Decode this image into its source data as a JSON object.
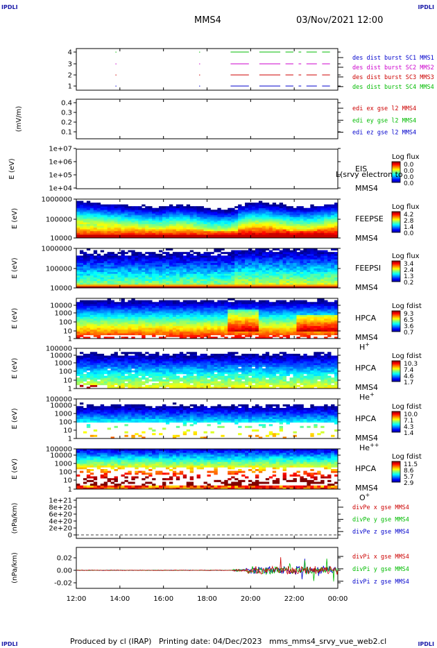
{
  "header": {
    "spacecraft": "MMS4",
    "datetime": "03/Nov/2021 12:00",
    "corner_tag": "IPDLI"
  },
  "footer": {
    "produced_by": "Produced by cl (IRAP)",
    "printing_date": "Printing date: 04/Dec/2023",
    "filename": "mms_mms4_srvy_vue_web2.cl"
  },
  "colors": {
    "blue": "#0000cc",
    "red": "#cc0000",
    "magenta": "#cc00cc",
    "green": "#00bb00"
  },
  "chart_data": {
    "type": "multi-panel-timeseries",
    "x_ticks": [
      "12:00",
      "14:00",
      "16:00",
      "18:00",
      "20:00",
      "22:00",
      "00:00"
    ],
    "panels": [
      {
        "id": "burst",
        "type": "line",
        "ylabel": "",
        "yticks": [
          "1",
          "2",
          "3",
          "4"
        ],
        "legend": [
          {
            "text": "des dist burst SC1 MMS1",
            "color": "#0000cc"
          },
          {
            "text": "des dist burst SC2 MMS2",
            "color": "#cc00cc"
          },
          {
            "text": "des dist burst SC3 MMS3",
            "color": "#cc0000"
          },
          {
            "text": "des dist burst SC4 MMS4",
            "color": "#00bb00"
          }
        ]
      },
      {
        "id": "edi",
        "type": "line",
        "ylabel": "(mV/m)",
        "yticks": [
          "0.1",
          "0.2",
          "0.3",
          "0.4"
        ],
        "legend": [
          {
            "text": "edi ex gse l2 MMS4",
            "color": "#cc0000"
          },
          {
            "text": "edi ey gse l2 MMS4",
            "color": "#00bb00"
          },
          {
            "text": "edi ez gse l2 MMS4",
            "color": "#0000cc"
          }
        ]
      },
      {
        "id": "eis",
        "type": "heatmap",
        "ylabel": "E (eV)",
        "yticks": [
          "1e+04",
          "1e+05",
          "1e+06",
          "1e+07"
        ],
        "labels": [
          "EIS",
          "MMS4"
        ],
        "overlay": "L(srvy electron to",
        "colorbar": {
          "title": "Log flux",
          "ticks": [
            "0.0",
            "0.0",
            "0.0",
            "0.0"
          ]
        }
      },
      {
        "id": "feepse",
        "type": "heatmap",
        "ylabel": "E (eV)",
        "yticks": [
          "10000",
          "100000",
          "1000000"
        ],
        "labels": [
          "FEEPSE",
          "MMS4"
        ],
        "colorbar": {
          "title": "Log flux",
          "ticks": [
            "4.2",
            "2.8",
            "1.4",
            "0.0"
          ]
        }
      },
      {
        "id": "feepsi",
        "type": "heatmap",
        "ylabel": "E (eV)",
        "yticks": [
          "10000",
          "100000",
          "1000000"
        ],
        "labels": [
          "FEEPSI",
          "MMS4"
        ],
        "colorbar": {
          "title": "Log flux",
          "ticks": [
            "3.4",
            "2.4",
            "1.3",
            "0.2"
          ]
        }
      },
      {
        "id": "hpca_h",
        "type": "heatmap",
        "ylabel": "E (eV)",
        "yticks": [
          "1",
          "10",
          "100",
          "1000",
          "10000"
        ],
        "labels": [
          "HPCA",
          "MMS4"
        ],
        "species": {
          "base": "H",
          "sup": "+"
        },
        "colorbar": {
          "title": "Log fdist",
          "ticks": [
            "9.3",
            "6.5",
            "3.6",
            "0.7"
          ]
        }
      },
      {
        "id": "hpca_he",
        "type": "heatmap",
        "ylabel": "E (eV)",
        "yticks": [
          "1",
          "10",
          "100",
          "1000",
          "10000",
          "100000"
        ],
        "labels": [
          "HPCA",
          "MMS4"
        ],
        "species": {
          "base": "He",
          "sup": "+"
        },
        "colorbar": {
          "title": "Log fdist",
          "ticks": [
            "10.3",
            "7.4",
            "4.6",
            "1.7"
          ]
        }
      },
      {
        "id": "hpca_hepp",
        "type": "heatmap",
        "ylabel": "E (eV)",
        "yticks": [
          "1",
          "10",
          "100",
          "1000",
          "10000",
          "100000"
        ],
        "labels": [
          "HPCA",
          "MMS4"
        ],
        "species": {
          "base": "He",
          "sup": "++"
        },
        "colorbar": {
          "title": "Log fdist",
          "ticks": [
            "10.0",
            "7.1",
            "4.3",
            "1.4"
          ]
        }
      },
      {
        "id": "hpca_o",
        "type": "heatmap",
        "ylabel": "E (eV)",
        "yticks": [
          "1",
          "10",
          "100",
          "1000",
          "10000",
          "100000"
        ],
        "labels": [
          "HPCA",
          "MMS4"
        ],
        "species": {
          "base": "O",
          "sup": "+"
        },
        "colorbar": {
          "title": "Log fdist",
          "ticks": [
            "11.5",
            "8.6",
            "5.7",
            "2.9"
          ]
        }
      },
      {
        "id": "divpe",
        "type": "line",
        "ylabel": "(nPa/km)",
        "yticks": [
          "0",
          "2e+20",
          "4e+20",
          "6e+20",
          "8e+20",
          "1e+21"
        ],
        "legend": [
          {
            "text": "divPe x gse MMS4",
            "color": "#cc0000"
          },
          {
            "text": "divPe y gse MMS4",
            "color": "#00bb00"
          },
          {
            "text": "divPe z gse MMS4",
            "color": "#0000cc"
          }
        ]
      },
      {
        "id": "divpi",
        "type": "line",
        "ylabel": "(nPa/km)",
        "yticks": [
          "-0.02",
          "0.00",
          "0.02"
        ],
        "legend": [
          {
            "text": "divPi x gse MMS4",
            "color": "#cc0000"
          },
          {
            "text": "divPi y gse MMS4",
            "color": "#00bb00"
          },
          {
            "text": "divPi z gse MMS4",
            "color": "#0000cc"
          }
        ]
      }
    ]
  }
}
